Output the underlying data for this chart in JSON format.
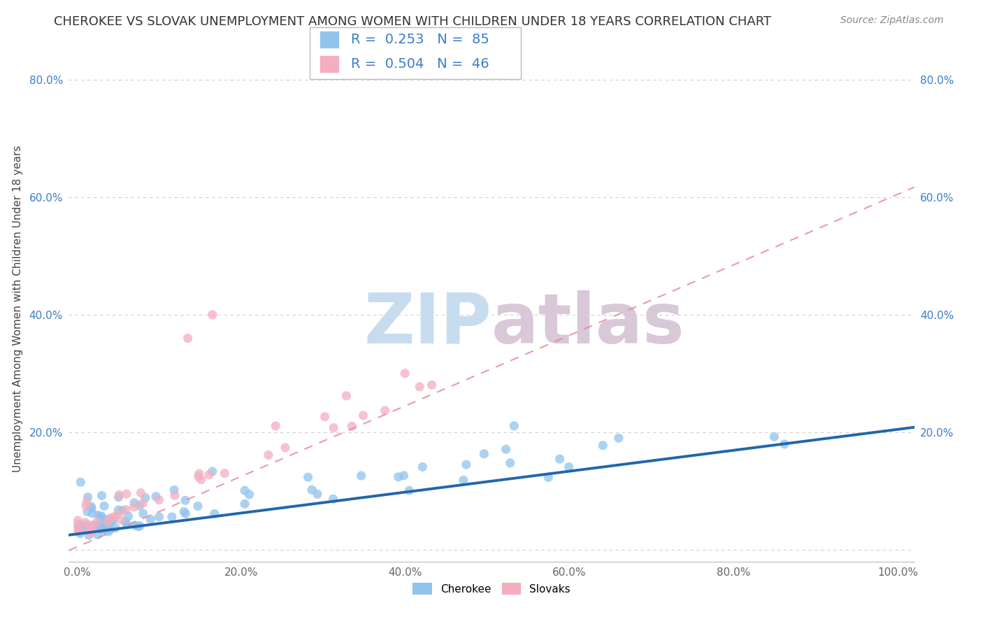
{
  "title": "CHEROKEE VS SLOVAK UNEMPLOYMENT AMONG WOMEN WITH CHILDREN UNDER 18 YEARS CORRELATION CHART",
  "source": "Source: ZipAtlas.com",
  "ylabel": "Unemployment Among Women with Children Under 18 years",
  "xlim": [
    -0.01,
    1.02
  ],
  "ylim": [
    -0.02,
    0.84
  ],
  "xticks": [
    0.0,
    0.2,
    0.4,
    0.6,
    0.8,
    1.0
  ],
  "xticklabels": [
    "0.0%",
    "20.0%",
    "40.0%",
    "60.0%",
    "80.0%",
    "100.0%"
  ],
  "ytick_positions": [
    0.0,
    0.2,
    0.4,
    0.6,
    0.8
  ],
  "yticklabels": [
    "",
    "20.0%",
    "40.0%",
    "60.0%",
    "80.0%"
  ],
  "cherokee_color": "#90C4ED",
  "cherokee_edge_color": "#90C4ED",
  "slovak_color": "#F4AEC0",
  "slovak_edge_color": "#F4AEC0",
  "cherokee_line_color": "#2166AC",
  "slovak_line_color": "#E8889A",
  "legend_r_cherokee": "0.253",
  "legend_n_cherokee": "85",
  "legend_r_slovak": "0.504",
  "legend_n_slovak": "46",
  "background_color": "#ffffff",
  "grid_color": "#d0d0d0",
  "title_color": "#333333",
  "source_color": "#888888",
  "tick_color_x": "#666666",
  "tick_color_y": "#3A7DC9",
  "title_fontsize": 13,
  "axis_label_fontsize": 11,
  "tick_fontsize": 11,
  "legend_fontsize": 14,
  "watermark_zip_color": "#C8DCF0",
  "watermark_atlas_color": "#D8C8D8",
  "watermark_fontsize": 72,
  "scatter_size": 90,
  "scatter_alpha": 0.75
}
